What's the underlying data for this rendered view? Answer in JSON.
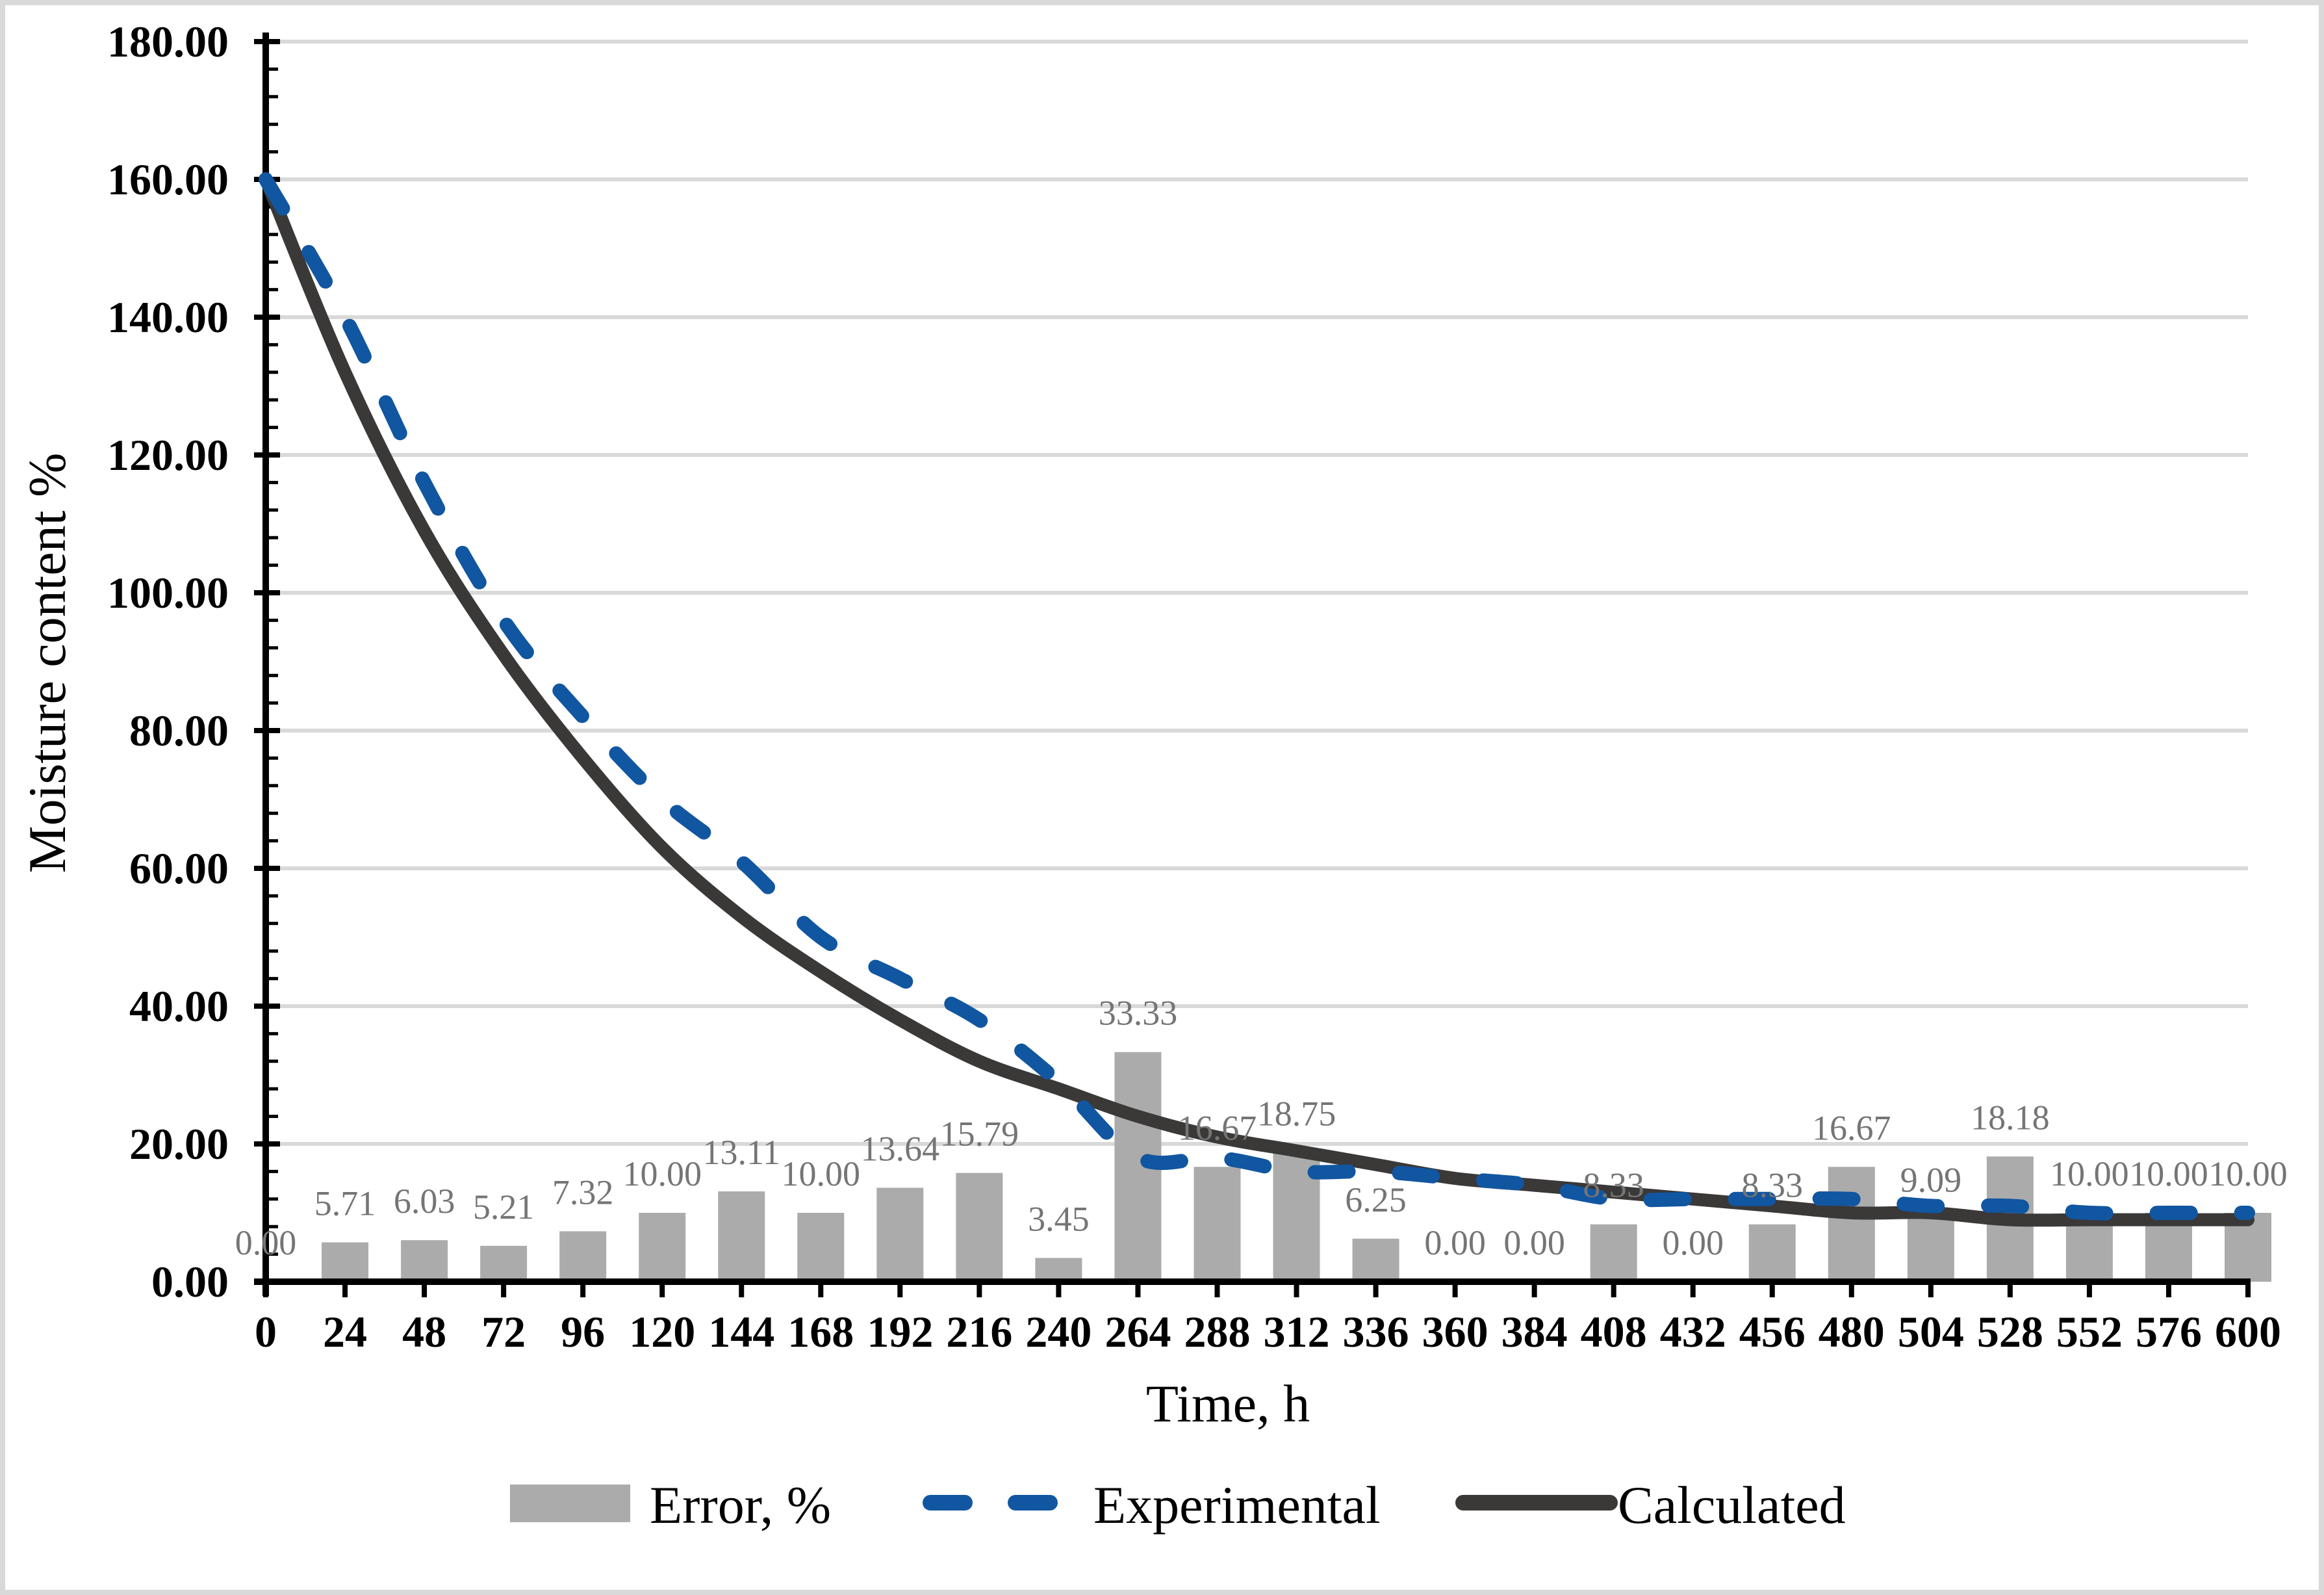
{
  "chart_data": {
    "type": "combo-bar-line",
    "title": "",
    "xlabel": "Time, h",
    "ylabel": "Moisture content %",
    "xlim": [
      0,
      600
    ],
    "ylim": [
      0,
      180
    ],
    "xtick_step": 24,
    "ytick_step": 20,
    "minor_ytick_step": 4,
    "grid": true,
    "legend_position": "bottom",
    "x": [
      0,
      24,
      48,
      72,
      96,
      120,
      144,
      168,
      192,
      216,
      240,
      264,
      288,
      312,
      336,
      360,
      384,
      408,
      432,
      456,
      480,
      504,
      528,
      552,
      576,
      600
    ],
    "xtick_labels": [
      "0",
      "24",
      "48",
      "72",
      "96",
      "120",
      "144",
      "168",
      "192",
      "216",
      "240",
      "264",
      "288",
      "312",
      "336",
      "360",
      "384",
      "408",
      "432",
      "456",
      "480",
      "504",
      "528",
      "552",
      "576",
      "600"
    ],
    "ytick_labels": [
      "0.00",
      "20.00",
      "40.00",
      "60.00",
      "80.00",
      "100.00",
      "120.00",
      "140.00",
      "160.00",
      "180.00"
    ],
    "series": [
      {
        "name": "Error, %",
        "type": "bar",
        "color": "#ABABAB",
        "label_color": "#757575",
        "values": [
          0.0,
          5.71,
          6.03,
          5.21,
          7.32,
          10.0,
          13.11,
          10.0,
          13.64,
          15.79,
          3.45,
          33.33,
          16.67,
          18.75,
          6.25,
          0.0,
          0.0,
          8.33,
          0.0,
          8.33,
          16.67,
          9.09,
          18.18,
          10.0,
          10.0,
          10.0
        ],
        "labels": [
          "0.00",
          "5.71",
          "6.03",
          "5.21",
          "7.32",
          "10.00",
          "13.11",
          "10.00",
          "13.64",
          "15.79",
          "3.45",
          "33.33",
          "16.67",
          "18.75",
          "6.25",
          "0.00",
          "0.00",
          "8.33",
          "0.00",
          "8.33",
          "16.67",
          "9.09",
          "18.18",
          "10.00",
          "10.00",
          "10.00"
        ]
      },
      {
        "name": "Experimental",
        "type": "line",
        "dashed": true,
        "color": "#1156A0",
        "values": [
          160,
          140,
          116,
          96,
          82,
          70,
          61,
          50,
          44,
          38,
          29,
          18,
          18,
          16,
          16,
          15,
          14,
          12,
          12,
          12,
          12,
          11,
          11,
          10,
          10,
          10
        ]
      },
      {
        "name": "Calculated",
        "type": "line",
        "dashed": false,
        "color": "#3B3838",
        "values": [
          160,
          132,
          109,
          91,
          76,
          63,
          53,
          45,
          38,
          32,
          28,
          24,
          21,
          19,
          17,
          15,
          14,
          13,
          12,
          11,
          10,
          10,
          9,
          9,
          9,
          9
        ]
      }
    ]
  },
  "legend": {
    "items": [
      {
        "label": "Error, %",
        "swatch": "bar"
      },
      {
        "label": "Experimental",
        "swatch": "dashed-line"
      },
      {
        "label": "Calculated",
        "swatch": "solid-line"
      }
    ]
  },
  "colors": {
    "bar": "#ABABAB",
    "bar_label": "#757575",
    "experimental": "#1156A0",
    "calculated": "#3B3838",
    "gridline": "#D9D9D9",
    "axis": "#000000",
    "frame_border": "#D9D9D9"
  }
}
